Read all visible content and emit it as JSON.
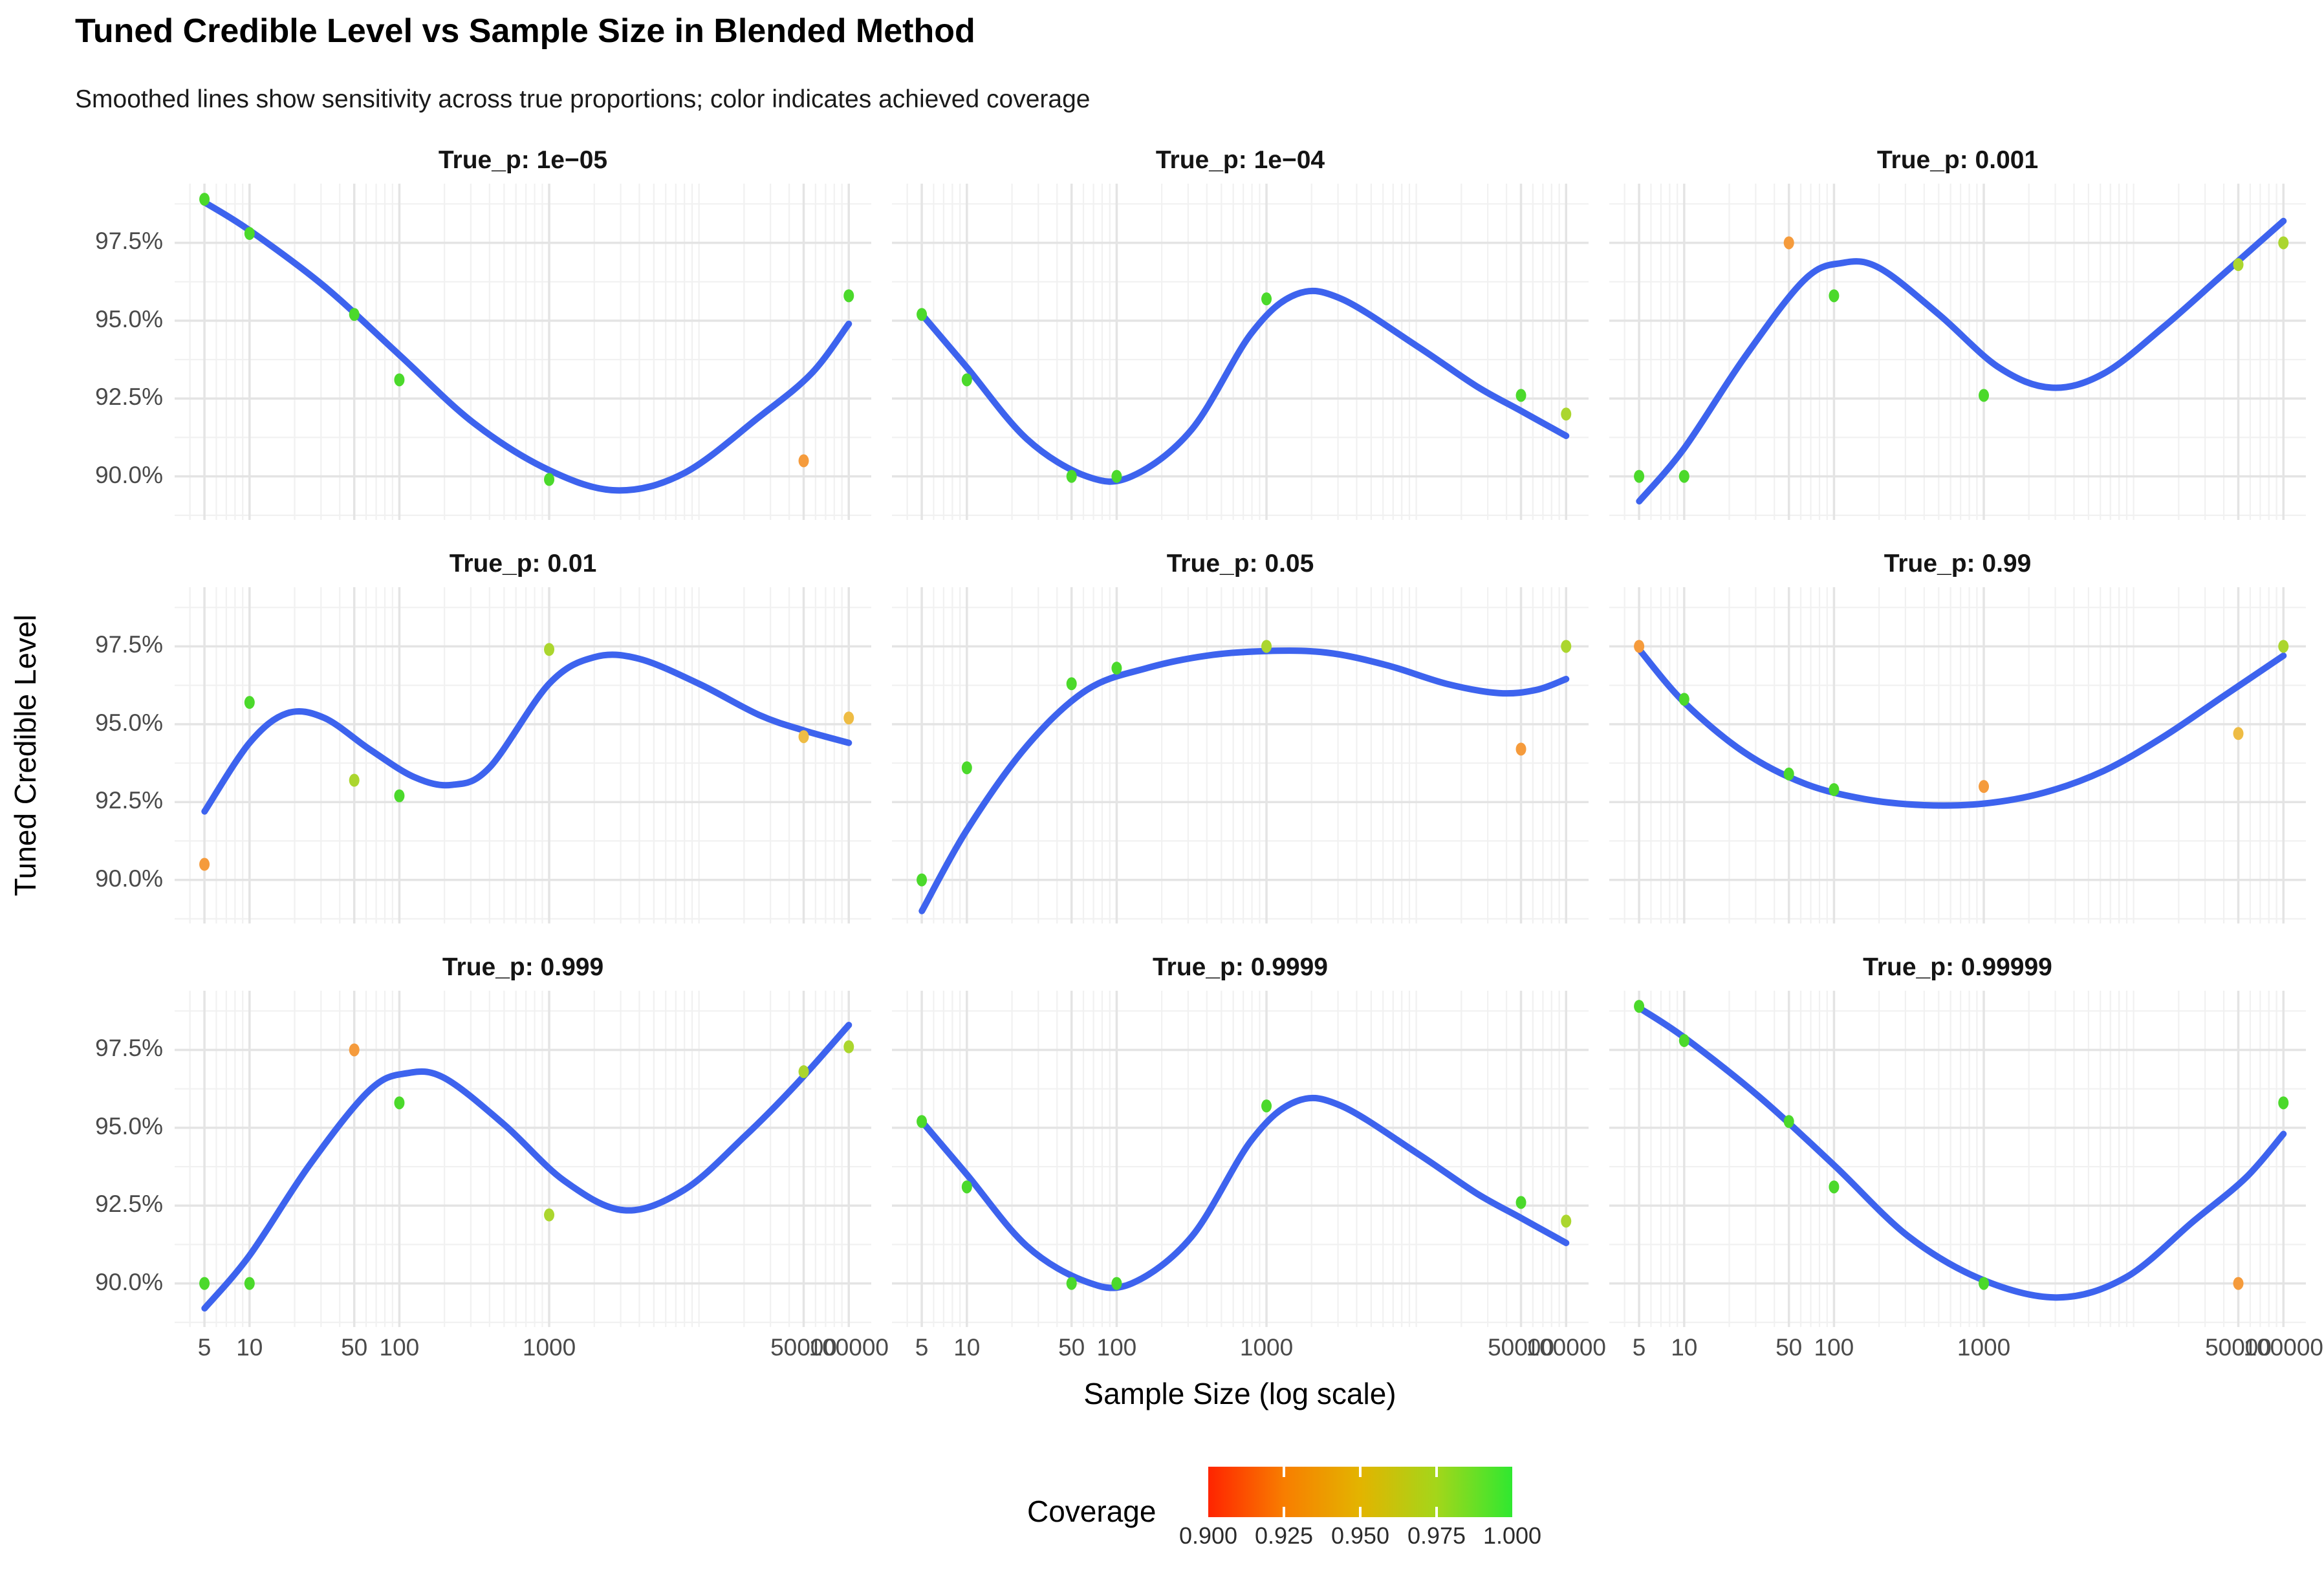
{
  "title": "Tuned Credible Level vs Sample Size in Blended Method",
  "subtitle": "Smoothed lines show sensitivity across true proportions; color indicates achieved coverage",
  "axes": {
    "x_title": "Sample Size (log scale)",
    "y_title": "Tuned Credible Level",
    "x_tick_labels": [
      "5",
      "10",
      "50",
      "100",
      "1000",
      "50000",
      "100000"
    ],
    "y_tick_labels": [
      "97.5%",
      "95.0%",
      "92.5%",
      "90.0%"
    ]
  },
  "legend": {
    "title": "Coverage",
    "tick_labels": [
      "0.900",
      "0.925",
      "0.950",
      "0.975",
      "1.000"
    ],
    "gradient": [
      "#ff2400",
      "#f87e00",
      "#e3b400",
      "#a4d61a",
      "#30e830"
    ]
  },
  "style": {
    "line_color": "#3d63ee",
    "major_grid": "#e4e4e4",
    "minor_grid": "#f1f1f1",
    "tick_text": "#4a4a4a",
    "point_palette": {
      "green": "#4bd92b",
      "ygreen": "#abd62e",
      "amber": "#eebc44",
      "orange": "#f59b3c"
    }
  },
  "chart_data": {
    "type": "scatter",
    "smooth": true,
    "x_scale": "log10",
    "x_log_domain": [
      0.5,
      5.15
    ],
    "y_domain": [
      88.6,
      99.4
    ],
    "x_breaks": [
      5,
      10,
      50,
      100,
      1000,
      50000,
      100000
    ],
    "y_breaks": [
      97.5,
      95.0,
      92.5,
      90.0
    ],
    "y_minor_breaks": [
      88.75,
      91.25,
      93.75,
      96.25,
      98.75
    ],
    "sample_sizes": [
      5,
      10,
      50,
      100,
      1000,
      50000,
      100000
    ],
    "coverage_legend_note": "point color encodes achieved coverage 0.90-1.00 (red-to-green)",
    "facets": [
      {
        "label": "True_p: 1e−05",
        "points": {
          "y": [
            98.9,
            97.8,
            95.2,
            93.1,
            89.9,
            90.5,
            95.8
          ],
          "coverage": [
            0.995,
            0.995,
            0.995,
            0.995,
            0.995,
            0.925,
            0.995
          ],
          "color_key": [
            "green",
            "green",
            "green",
            "green",
            "green",
            "orange",
            "green"
          ]
        },
        "smooth": [
          [
            0.7,
            98.8
          ],
          [
            1.0,
            97.9
          ],
          [
            1.5,
            96.1
          ],
          [
            2.0,
            93.9
          ],
          [
            2.5,
            91.7
          ],
          [
            3.0,
            90.2
          ],
          [
            3.45,
            89.55
          ],
          [
            3.9,
            90.1
          ],
          [
            4.4,
            91.9
          ],
          [
            4.75,
            93.3
          ],
          [
            5.0,
            94.9
          ]
        ]
      },
      {
        "label": "True_p: 1e−04",
        "points": {
          "y": [
            95.2,
            93.1,
            90.0,
            90.0,
            95.7,
            92.6,
            92.0
          ],
          "coverage": [
            0.995,
            0.995,
            0.995,
            0.995,
            0.995,
            0.995,
            0.965
          ],
          "color_key": [
            "green",
            "green",
            "green",
            "green",
            "green",
            "green",
            "ygreen"
          ]
        },
        "smooth": [
          [
            0.7,
            95.2
          ],
          [
            1.0,
            93.5
          ],
          [
            1.4,
            91.2
          ],
          [
            1.8,
            90.0
          ],
          [
            2.1,
            90.0
          ],
          [
            2.5,
            91.5
          ],
          [
            2.9,
            94.6
          ],
          [
            3.2,
            95.85
          ],
          [
            3.5,
            95.7
          ],
          [
            4.0,
            94.2
          ],
          [
            4.4,
            92.9
          ],
          [
            4.7,
            92.1
          ],
          [
            5.0,
            91.3
          ]
        ]
      },
      {
        "label": "True_p: 0.001",
        "points": {
          "y": [
            90.0,
            90.0,
            97.5,
            95.8,
            92.6,
            96.8,
            97.5
          ],
          "coverage": [
            0.995,
            0.995,
            0.925,
            0.995,
            0.995,
            0.965,
            0.965
          ],
          "color_key": [
            "green",
            "green",
            "orange",
            "green",
            "green",
            "ygreen",
            "ygreen"
          ]
        },
        "smooth": [
          [
            0.7,
            89.2
          ],
          [
            1.0,
            90.9
          ],
          [
            1.4,
            93.8
          ],
          [
            1.8,
            96.3
          ],
          [
            2.05,
            96.85
          ],
          [
            2.3,
            96.7
          ],
          [
            2.7,
            95.2
          ],
          [
            3.1,
            93.5
          ],
          [
            3.45,
            92.85
          ],
          [
            3.8,
            93.3
          ],
          [
            4.2,
            94.8
          ],
          [
            4.6,
            96.5
          ],
          [
            5.0,
            98.2
          ]
        ]
      },
      {
        "label": "True_p: 0.01",
        "points": {
          "y": [
            90.5,
            95.7,
            93.2,
            92.7,
            97.4,
            94.6,
            95.2
          ],
          "coverage": [
            0.925,
            0.995,
            0.965,
            0.995,
            0.965,
            0.945,
            0.945
          ],
          "color_key": [
            "orange",
            "green",
            "ygreen",
            "green",
            "ygreen",
            "amber",
            "amber"
          ]
        },
        "smooth": [
          [
            0.7,
            92.2
          ],
          [
            1.0,
            94.4
          ],
          [
            1.25,
            95.35
          ],
          [
            1.5,
            95.2
          ],
          [
            1.8,
            94.2
          ],
          [
            2.1,
            93.3
          ],
          [
            2.35,
            93.05
          ],
          [
            2.6,
            93.6
          ],
          [
            3.0,
            96.3
          ],
          [
            3.3,
            97.15
          ],
          [
            3.6,
            97.1
          ],
          [
            4.0,
            96.3
          ],
          [
            4.4,
            95.3
          ],
          [
            4.7,
            94.8
          ],
          [
            5.0,
            94.4
          ]
        ]
      },
      {
        "label": "True_p: 0.05",
        "points": {
          "y": [
            90.0,
            93.6,
            96.3,
            96.8,
            97.5,
            94.2,
            97.5
          ],
          "coverage": [
            0.995,
            0.995,
            0.995,
            0.995,
            0.965,
            0.925,
            0.965
          ],
          "color_key": [
            "green",
            "green",
            "green",
            "green",
            "ygreen",
            "orange",
            "ygreen"
          ]
        },
        "smooth": [
          [
            0.7,
            89.0
          ],
          [
            1.0,
            91.6
          ],
          [
            1.4,
            94.3
          ],
          [
            1.8,
            96.1
          ],
          [
            2.2,
            96.8
          ],
          [
            2.6,
            97.2
          ],
          [
            3.0,
            97.35
          ],
          [
            3.4,
            97.3
          ],
          [
            3.8,
            96.9
          ],
          [
            4.2,
            96.3
          ],
          [
            4.55,
            96.0
          ],
          [
            4.8,
            96.1
          ],
          [
            5.0,
            96.45
          ]
        ]
      },
      {
        "label": "True_p: 0.99",
        "points": {
          "y": [
            97.5,
            95.8,
            93.4,
            92.9,
            93.0,
            94.7,
            97.5
          ],
          "coverage": [
            0.925,
            0.995,
            0.995,
            0.995,
            0.925,
            0.945,
            0.965
          ],
          "color_key": [
            "orange",
            "green",
            "green",
            "green",
            "orange",
            "amber",
            "ygreen"
          ]
        },
        "smooth": [
          [
            0.7,
            97.4
          ],
          [
            1.0,
            95.7
          ],
          [
            1.4,
            94.1
          ],
          [
            1.8,
            93.1
          ],
          [
            2.2,
            92.6
          ],
          [
            2.6,
            92.4
          ],
          [
            3.0,
            92.45
          ],
          [
            3.4,
            92.8
          ],
          [
            3.8,
            93.5
          ],
          [
            4.2,
            94.6
          ],
          [
            4.6,
            95.9
          ],
          [
            5.0,
            97.2
          ]
        ]
      },
      {
        "label": "True_p: 0.999",
        "points": {
          "y": [
            90.0,
            90.0,
            97.5,
            95.8,
            92.2,
            96.8,
            97.6
          ],
          "coverage": [
            0.995,
            0.995,
            0.925,
            0.995,
            0.965,
            0.965,
            0.965
          ],
          "color_key": [
            "green",
            "green",
            "orange",
            "green",
            "ygreen",
            "ygreen",
            "ygreen"
          ]
        },
        "smooth": [
          [
            0.7,
            89.2
          ],
          [
            1.0,
            90.9
          ],
          [
            1.4,
            93.8
          ],
          [
            1.8,
            96.2
          ],
          [
            2.05,
            96.75
          ],
          [
            2.3,
            96.6
          ],
          [
            2.7,
            95.1
          ],
          [
            3.1,
            93.3
          ],
          [
            3.5,
            92.35
          ],
          [
            3.9,
            93.0
          ],
          [
            4.3,
            94.7
          ],
          [
            4.65,
            96.4
          ],
          [
            5.0,
            98.3
          ]
        ]
      },
      {
        "label": "True_p: 0.9999",
        "points": {
          "y": [
            95.2,
            93.1,
            90.0,
            90.0,
            95.7,
            92.6,
            92.0
          ],
          "coverage": [
            0.995,
            0.995,
            0.995,
            0.995,
            0.995,
            0.995,
            0.965
          ],
          "color_key": [
            "green",
            "green",
            "green",
            "green",
            "green",
            "green",
            "ygreen"
          ]
        },
        "smooth": [
          [
            0.7,
            95.2
          ],
          [
            1.0,
            93.5
          ],
          [
            1.4,
            91.2
          ],
          [
            1.8,
            90.05
          ],
          [
            2.1,
            90.0
          ],
          [
            2.5,
            91.5
          ],
          [
            2.9,
            94.6
          ],
          [
            3.2,
            95.85
          ],
          [
            3.5,
            95.7
          ],
          [
            4.0,
            94.2
          ],
          [
            4.4,
            92.9
          ],
          [
            4.7,
            92.1
          ],
          [
            5.0,
            91.3
          ]
        ]
      },
      {
        "label": "True_p: 0.99999",
        "points": {
          "y": [
            98.9,
            97.8,
            95.2,
            93.1,
            90.0,
            90.0,
            95.8
          ],
          "coverage": [
            0.995,
            0.995,
            0.995,
            0.995,
            0.995,
            0.925,
            0.995
          ],
          "color_key": [
            "green",
            "green",
            "green",
            "green",
            "green",
            "orange",
            "green"
          ]
        },
        "smooth": [
          [
            0.7,
            98.85
          ],
          [
            1.0,
            97.9
          ],
          [
            1.5,
            96.0
          ],
          [
            2.0,
            93.8
          ],
          [
            2.5,
            91.5
          ],
          [
            3.0,
            90.1
          ],
          [
            3.5,
            89.55
          ],
          [
            3.95,
            90.2
          ],
          [
            4.4,
            92.0
          ],
          [
            4.75,
            93.4
          ],
          [
            5.0,
            94.8
          ]
        ]
      }
    ]
  },
  "layout_note": "3x3 facet grid, shared log-x and percent-y scales, bottom horizontal colorbar legend"
}
